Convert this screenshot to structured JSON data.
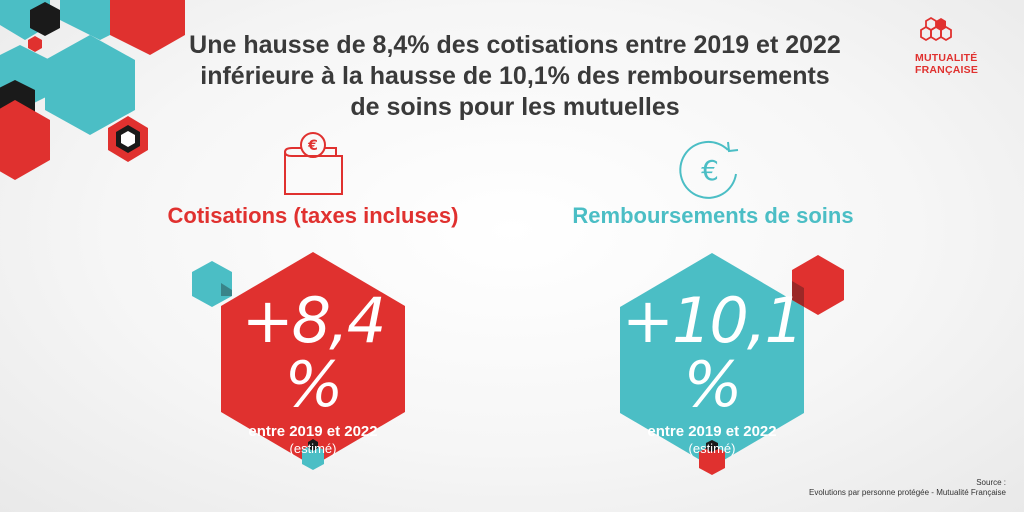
{
  "title": {
    "line1": "Une hausse de 8,4% des cotisations entre 2019 et 2022",
    "line2": "inférieure à la hausse de 10,1% des remboursements",
    "line3": "de soins pour les mutuelles"
  },
  "logo": {
    "line1": "MUTUALITÉ",
    "line2": "FRANÇAISE",
    "icon": "hexagon-cluster-icon",
    "color": "#e0312f"
  },
  "colors": {
    "red": "#e0312f",
    "teal": "#4bbec5",
    "dark": "#1a1a1a",
    "text": "#3a3a3a"
  },
  "left": {
    "icon": "wallet-euro-icon",
    "heading": "Cotisations (taxes incluses)",
    "value": "+8,4 %",
    "period": "entre 2019 et 2022",
    "note": "(estimé)"
  },
  "right": {
    "icon": "euro-refresh-icon",
    "heading": "Remboursements de soins",
    "value": "+10,1 %",
    "period": "entre 2019 et 2022",
    "note": "(estimé)"
  },
  "source": {
    "label": "Source :",
    "text": "Evolutions par personne protégée - Mutualité Française"
  }
}
